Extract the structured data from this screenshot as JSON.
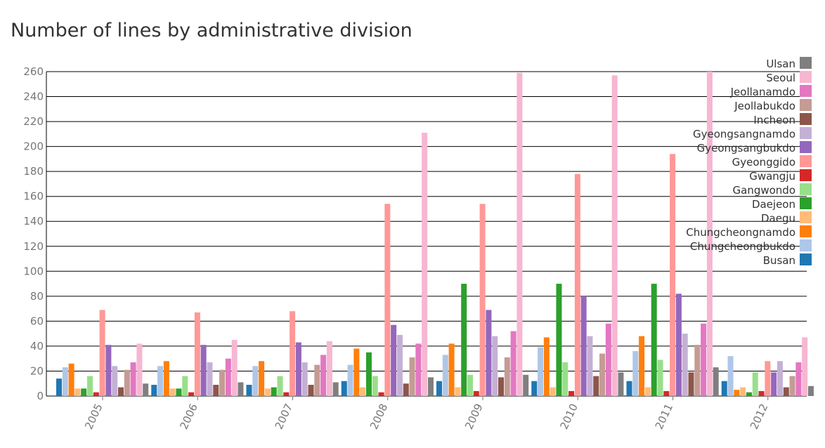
{
  "chart_data": {
    "type": "bar",
    "title": "Number of lines by administrative division",
    "xlabel": "",
    "ylabel": "",
    "ylim": [
      0,
      260
    ],
    "yticks": [
      0,
      20,
      40,
      60,
      80,
      100,
      120,
      140,
      160,
      180,
      200,
      220,
      240,
      260
    ],
    "grid": true,
    "legend_position": "top-right",
    "categories": [
      "2005",
      "2006",
      "2007",
      "2008",
      "2009",
      "2010",
      "2011",
      "2012"
    ],
    "series": [
      {
        "name": "Busan",
        "color": "#1f77b4",
        "values": [
          14,
          9,
          9,
          12,
          12,
          12,
          12,
          12
        ]
      },
      {
        "name": "Chungcheongbukdo",
        "color": "#aec7e8",
        "values": [
          23,
          24,
          24,
          25,
          33,
          39,
          36,
          32
        ]
      },
      {
        "name": "Chungcheongnamdo",
        "color": "#ff7f0e",
        "values": [
          26,
          28,
          28,
          38,
          42,
          47,
          48,
          5
        ]
      },
      {
        "name": "Daegu",
        "color": "#ffbb78",
        "values": [
          6,
          6,
          6,
          7,
          7,
          7,
          7,
          7
        ]
      },
      {
        "name": "Daejeon",
        "color": "#2ca02c",
        "values": [
          6,
          6,
          7,
          35,
          90,
          90,
          90,
          3
        ]
      },
      {
        "name": "Gangwondo",
        "color": "#98df8a",
        "values": [
          16,
          16,
          16,
          16,
          17,
          27,
          29,
          19
        ]
      },
      {
        "name": "Gwangju",
        "color": "#d62728",
        "values": [
          3,
          3,
          3,
          3,
          4,
          4,
          4,
          4
        ]
      },
      {
        "name": "Gyeonggido",
        "color": "#ff9896",
        "values": [
          69,
          67,
          68,
          154,
          154,
          178,
          194,
          28
        ]
      },
      {
        "name": "Gyeongsangbukdo",
        "color": "#9467bd",
        "values": [
          41,
          41,
          43,
          57,
          69,
          80,
          82,
          19
        ]
      },
      {
        "name": "Gyeongsangnamdo",
        "color": "#c5b0d5",
        "values": [
          24,
          27,
          27,
          49,
          48,
          48,
          50,
          28
        ]
      },
      {
        "name": "Incheon",
        "color": "#8c564b",
        "values": [
          7,
          9,
          9,
          10,
          15,
          16,
          19,
          7
        ]
      },
      {
        "name": "Jeollabukdo",
        "color": "#c49c94",
        "values": [
          21,
          21,
          25,
          31,
          31,
          34,
          41,
          16
        ]
      },
      {
        "name": "Jeollanamdo",
        "color": "#e377c2",
        "values": [
          27,
          30,
          33,
          42,
          52,
          58,
          58,
          27
        ]
      },
      {
        "name": "Seoul",
        "color": "#f7b6d2",
        "values": [
          42,
          45,
          44,
          211,
          259,
          257,
          260,
          47
        ]
      },
      {
        "name": "Ulsan",
        "color": "#7f7f7f",
        "values": [
          10,
          11,
          11,
          15,
          17,
          19,
          23,
          8
        ]
      }
    ]
  }
}
